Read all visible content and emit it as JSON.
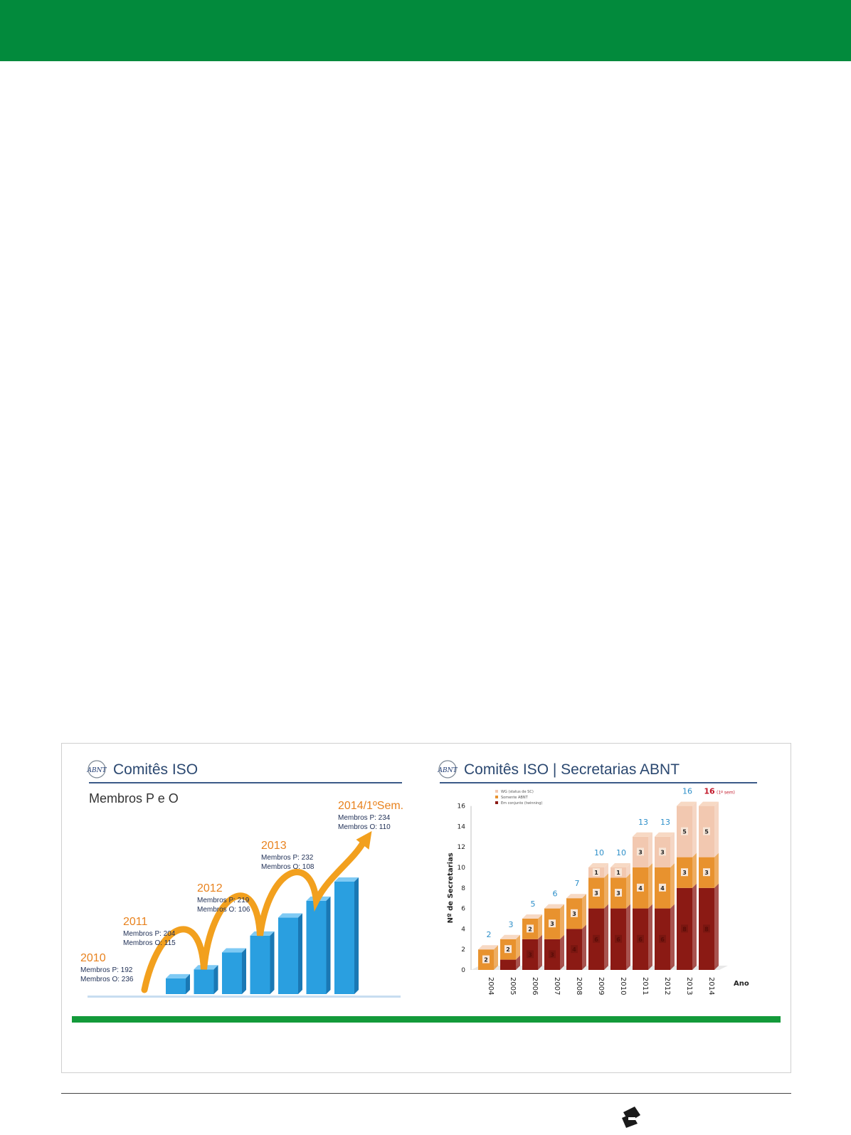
{
  "left_panel": {
    "logo_text": "ABNT",
    "heading": "Comitês ISO",
    "subheading": "Membros P e O",
    "annotations": [
      {
        "year": "2010",
        "p": "Membros P: 192",
        "o": "Membros O: 236"
      },
      {
        "year": "2011",
        "p": "Membros P: 204",
        "o": "Membros O: 115"
      },
      {
        "year": "2012",
        "p": "Membros P: 219",
        "o": "Membros O: 106"
      },
      {
        "year": "2013",
        "p": "Membros P: 232",
        "o": "Membros O: 108"
      },
      {
        "year": "2014/1ºSem.",
        "p": "Membros P: 234",
        "o": "Membros O: 110"
      }
    ]
  },
  "right_panel": {
    "logo_text": "ABNT",
    "heading": "Comitês ISO | Secretarias ABNT"
  },
  "colors": {
    "brand_green": "#028a3c",
    "bar_blue": "#2a9fe0",
    "arrow_orange": "#f2a01e",
    "year_orange": "#e8821e",
    "total_label_blue": "#2d8fc9",
    "stack_dark": "#8b1a14",
    "stack_mid": "#e8922e",
    "stack_light": "#f2c8b0"
  },
  "chart_data": [
    {
      "type": "bar",
      "title": "Membros P e O",
      "categories": [
        "2010",
        "2011",
        "2012",
        "2013",
        "2014/1ºSem."
      ],
      "series": [
        {
          "name": "Membros P",
          "values": [
            192,
            204,
            219,
            232,
            234
          ]
        },
        {
          "name": "Membros O",
          "values": [
            236,
            115,
            106,
            108,
            110
          ]
        }
      ],
      "bars_shown_relative_height": [
        0.14,
        0.22,
        0.37,
        0.52,
        0.68,
        0.83,
        1.0
      ],
      "decoration": "orange arrow hopping between bars, ending upward"
    },
    {
      "type": "bar",
      "stacked": true,
      "categories": [
        "2004",
        "2005",
        "2006",
        "2007",
        "2008",
        "2009",
        "2010",
        "2011",
        "2012",
        "2013",
        "2014"
      ],
      "xlabel": "Ano",
      "ylabel": "Nº de Secretarias",
      "ylim": [
        0,
        16
      ],
      "yticks": [
        0,
        2,
        4,
        6,
        8,
        10,
        12,
        14,
        16
      ],
      "series": [
        {
          "name": "Em conjunto (twinning)",
          "values": [
            0,
            1,
            3,
            3,
            4,
            6,
            6,
            6,
            6,
            8,
            8
          ],
          "labels": [
            "",
            "",
            "3",
            "3",
            "4",
            "6",
            "6",
            "6",
            "6",
            "8",
            "8"
          ]
        },
        {
          "name": "Somente ABNT",
          "values": [
            2,
            2,
            2,
            3,
            3,
            3,
            3,
            4,
            4,
            3,
            3
          ],
          "labels": [
            "2",
            "2",
            "2",
            "3",
            "3",
            "3",
            "3",
            "4",
            "4",
            "3",
            "3"
          ]
        },
        {
          "name": "WG (status de SC)",
          "values": [
            0,
            0,
            0,
            0,
            0,
            1,
            1,
            3,
            3,
            5,
            5
          ],
          "labels": [
            "",
            "",
            "",
            "",
            "",
            "1",
            "1",
            "3",
            "3",
            "5",
            "5"
          ]
        }
      ],
      "totals": [
        "2",
        "3",
        "5",
        "6",
        "7",
        "10",
        "10",
        "13",
        "13",
        "16",
        "16"
      ],
      "total_suffix_last": "(1º sem)",
      "legend": "top-left",
      "grid": false
    }
  ]
}
